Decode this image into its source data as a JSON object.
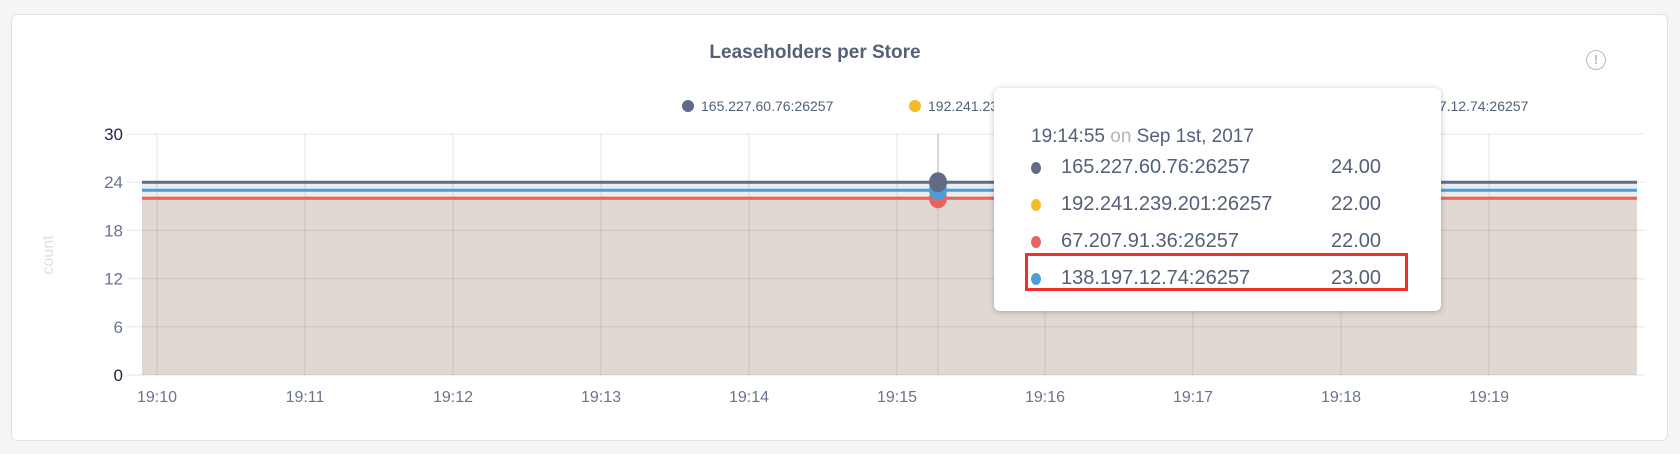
{
  "chart_data": {
    "type": "line",
    "title": "Leaseholders per Store",
    "ylabel": "count",
    "ylim": [
      0,
      30
    ],
    "yticks": [
      "0",
      "6",
      "12",
      "18",
      "24",
      "30"
    ],
    "xticks": [
      "19:10",
      "19:11",
      "19:12",
      "19:13",
      "19:14",
      "19:15",
      "19:16",
      "19:17",
      "19:18",
      "19:19"
    ],
    "grid": true,
    "legend_placement": "top",
    "series": [
      {
        "name": "165.227.60.76:26257",
        "color": "#5f6b87",
        "value": 24
      },
      {
        "name": "192.241.239.201:26257",
        "color": "#f3bb2b",
        "value": 22
      },
      {
        "name": "67.207.91.36:26257",
        "color": "#ea625f",
        "value": 22
      },
      {
        "name": "138.197.12.74:26257",
        "color": "#4a9fd8",
        "value": 23
      }
    ],
    "fill_color": "#e0d8d2"
  },
  "tooltip": {
    "time": "19:14:55",
    "on": "on",
    "date": "Sep 1st, 2017",
    "rows": [
      {
        "label": "165.227.60.76:26257",
        "value": "24.00",
        "color": "#5f6b87"
      },
      {
        "label": "192.241.239.201:26257",
        "value": "22.00",
        "color": "#f3bb2b"
      },
      {
        "label": "67.207.91.36:26257",
        "value": "22.00",
        "color": "#ea625f"
      },
      {
        "label": "138.197.12.74:26257",
        "value": "23.00",
        "color": "#4a9fd8"
      }
    ],
    "highlighted_row": 3
  },
  "info_icon": "info-circle-icon"
}
